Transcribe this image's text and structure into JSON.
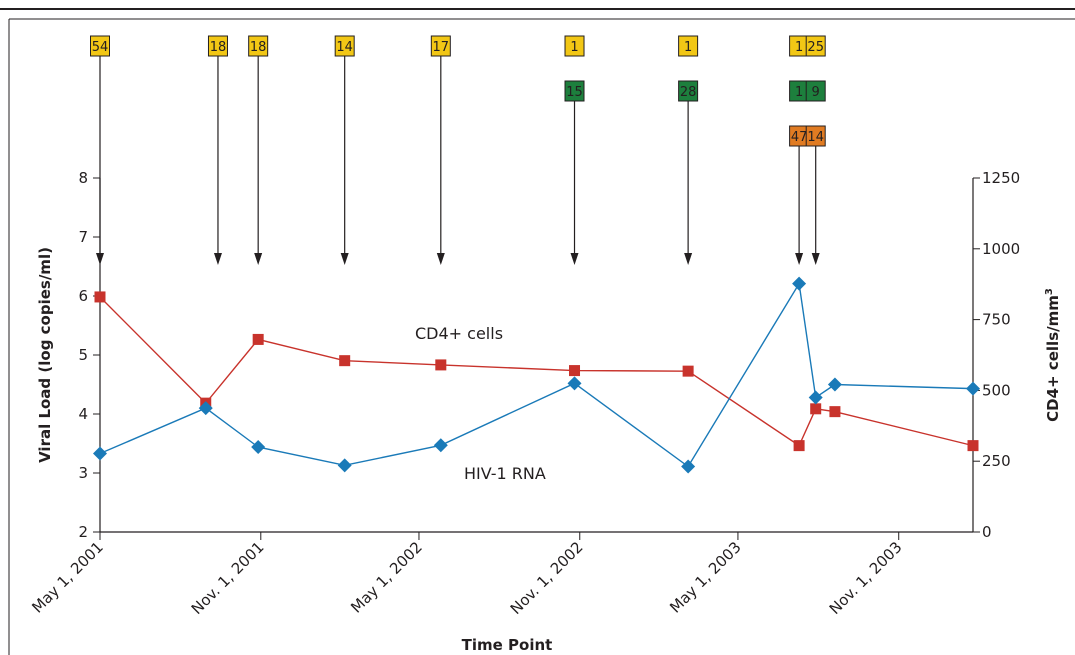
{
  "chart_data": {
    "type": "line",
    "xlabel": "Time Point",
    "ylabel": "Viral Load (log copies/ml)",
    "ylabel_right": "CD4+ cells/mm",
    "ylabel_right_superscript": "3",
    "x_ticks": [
      "May 1, 2001",
      "Nov. 1, 2001",
      "May 1, 2002",
      "Nov. 1, 2002",
      "May 1, 2003",
      "Nov. 1, 2003"
    ],
    "x_tick_dates": [
      "2001-05-01",
      "2001-11-01",
      "2002-05-01",
      "2002-11-01",
      "2003-05-01",
      "2003-11-01"
    ],
    "xlim": [
      "2001-05-01",
      "2004-01-25"
    ],
    "ylim": [
      2,
      8
    ],
    "y_ticks": [
      "2",
      "3",
      "4",
      "5",
      "6",
      "7",
      "8"
    ],
    "ylim_right": [
      0,
      1250
    ],
    "y_ticks_right": [
      "0",
      "250",
      "500",
      "750",
      "1000",
      "1250"
    ],
    "grid": false,
    "series": [
      {
        "name": "HIV-1 RNA",
        "axis": "left",
        "marker": "diamond",
        "color": "#1a7ab8",
        "x": [
          "2001-05-01",
          "2001-08-30",
          "2001-10-29",
          "2002-02-05",
          "2002-05-26",
          "2002-10-26",
          "2003-03-05",
          "2003-07-10",
          "2003-07-29",
          "2003-08-20",
          "2004-01-25"
        ],
        "values": [
          3.33,
          4.1,
          3.44,
          3.13,
          3.47,
          4.52,
          3.11,
          6.21,
          4.28,
          4.5,
          4.43
        ]
      },
      {
        "name": "CD4+ cells",
        "axis": "right",
        "marker": "square",
        "color": "#c8332c",
        "x": [
          "2001-05-01",
          "2001-08-30",
          "2001-10-29",
          "2002-02-05",
          "2002-05-26",
          "2002-10-26",
          "2003-03-05",
          "2003-07-10",
          "2003-07-29",
          "2003-08-20",
          "2004-01-25"
        ],
        "values": [
          830,
          455,
          680,
          605,
          590,
          570,
          568,
          305,
          435,
          425,
          305
        ]
      }
    ],
    "annotations": [
      {
        "x": "2001-05-01",
        "boxes": [
          {
            "value": "54",
            "color": "#f2c715"
          }
        ]
      },
      {
        "x": "2001-09-13",
        "boxes": [
          {
            "value": "18",
            "color": "#f2c715"
          }
        ]
      },
      {
        "x": "2001-10-29",
        "boxes": [
          {
            "value": "18",
            "color": "#f2c715"
          }
        ]
      },
      {
        "x": "2002-02-05",
        "boxes": [
          {
            "value": "14",
            "color": "#f2c715"
          }
        ]
      },
      {
        "x": "2002-05-26",
        "boxes": [
          {
            "value": "17",
            "color": "#f2c715"
          }
        ]
      },
      {
        "x": "2002-10-26",
        "boxes": [
          {
            "value": "1",
            "color": "#f2c715"
          },
          {
            "value": "15",
            "color": "#1d7f3d"
          }
        ]
      },
      {
        "x": "2003-03-05",
        "boxes": [
          {
            "value": "1",
            "color": "#f2c715"
          },
          {
            "value": "28",
            "color": "#1d7f3d"
          }
        ]
      },
      {
        "x": "2003-07-10",
        "boxes": [
          {
            "value": "1",
            "color": "#f2c715"
          },
          {
            "value": "1",
            "color": "#1d7f3d"
          },
          {
            "value": "47",
            "color": "#e07b22"
          }
        ]
      },
      {
        "x": "2003-07-29",
        "boxes": [
          {
            "value": "25",
            "color": "#f2c715"
          },
          {
            "value": "9",
            "color": "#1d7f3d"
          },
          {
            "value": "14",
            "color": "#e07b22"
          }
        ]
      }
    ]
  }
}
